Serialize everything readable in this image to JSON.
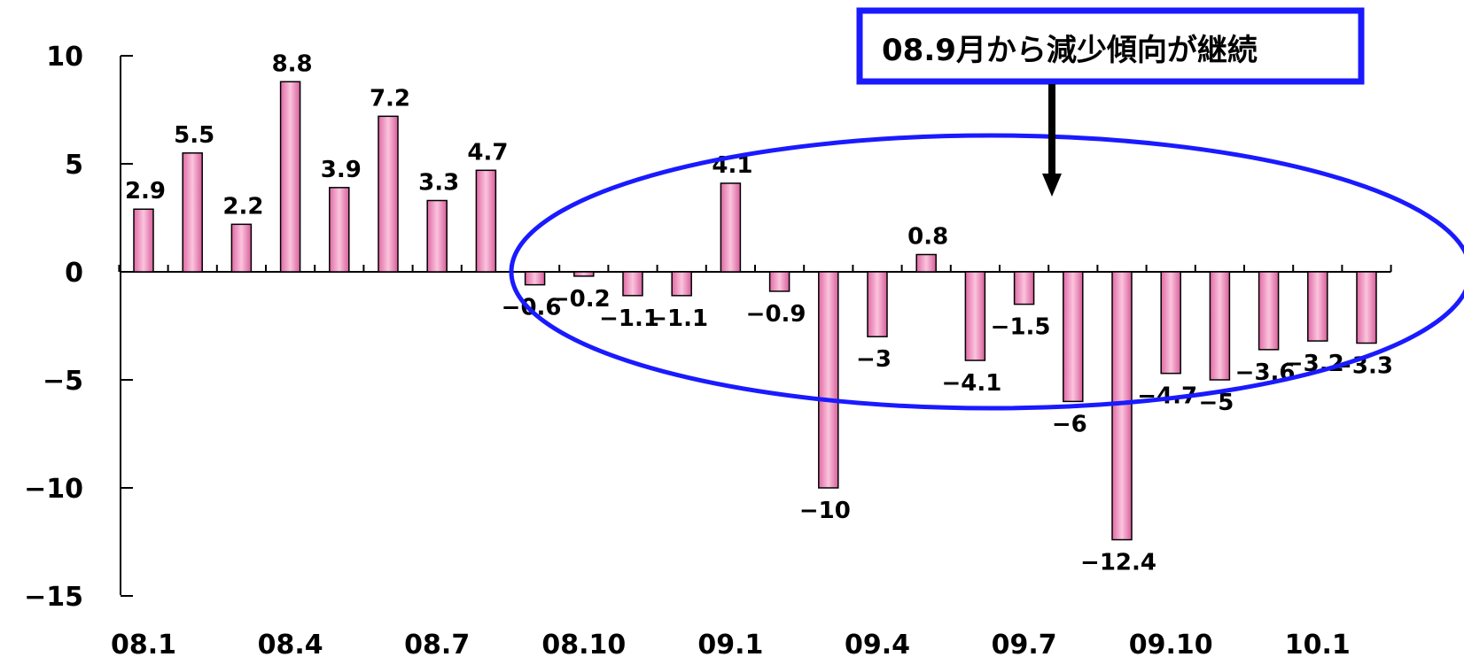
{
  "chart_data": {
    "type": "bar",
    "title": "",
    "xlabel": "",
    "ylabel": "",
    "ylim": [
      -15,
      10
    ],
    "yticks": [
      10,
      5,
      0,
      -5,
      -10,
      -15
    ],
    "ytick_labels": [
      "10",
      "5",
      "0",
      "−5",
      "−10",
      "−15"
    ],
    "x_tick_labels": [
      {
        "index": 0,
        "label": "08.1"
      },
      {
        "index": 3,
        "label": "08.4"
      },
      {
        "index": 6,
        "label": "08.7"
      },
      {
        "index": 9,
        "label": "08.10"
      },
      {
        "index": 12,
        "label": "09.1"
      },
      {
        "index": 15,
        "label": "09.4"
      },
      {
        "index": 18,
        "label": "09.7"
      },
      {
        "index": 21,
        "label": "09.10"
      },
      {
        "index": 24,
        "label": "10.1"
      }
    ],
    "values": [
      2.9,
      5.5,
      2.2,
      8.8,
      3.9,
      7.2,
      3.3,
      4.7,
      -0.6,
      -0.2,
      -1.1,
      -1.1,
      4.1,
      -0.9,
      -10,
      -3,
      0.8,
      -4.1,
      -1.5,
      -6,
      -12.4,
      -4.7,
      -5,
      -3.6,
      -3.2,
      -3.3
    ],
    "data_labels": [
      "2.9",
      "5.5",
      "2.2",
      "8.8",
      "3.9",
      "7.2",
      "3.3",
      "4.7",
      "−0.6",
      "−0.2",
      "−1.1",
      "−1.1",
      "4.1",
      "−0.9",
      "−10",
      "−3",
      "0.8",
      "−4.1",
      "−1.5",
      "−6",
      "−12.4",
      "−4.7",
      "−5",
      "−3.6",
      "−3.2",
      "−3.3"
    ],
    "bar_color": "#f29ac4",
    "grid": false,
    "annotation": {
      "text": "08.9月から減少傾向が継続",
      "box_color": "#1a1aff",
      "ellipse_color": "#1a1aff",
      "arrow_color": "#000000"
    }
  }
}
